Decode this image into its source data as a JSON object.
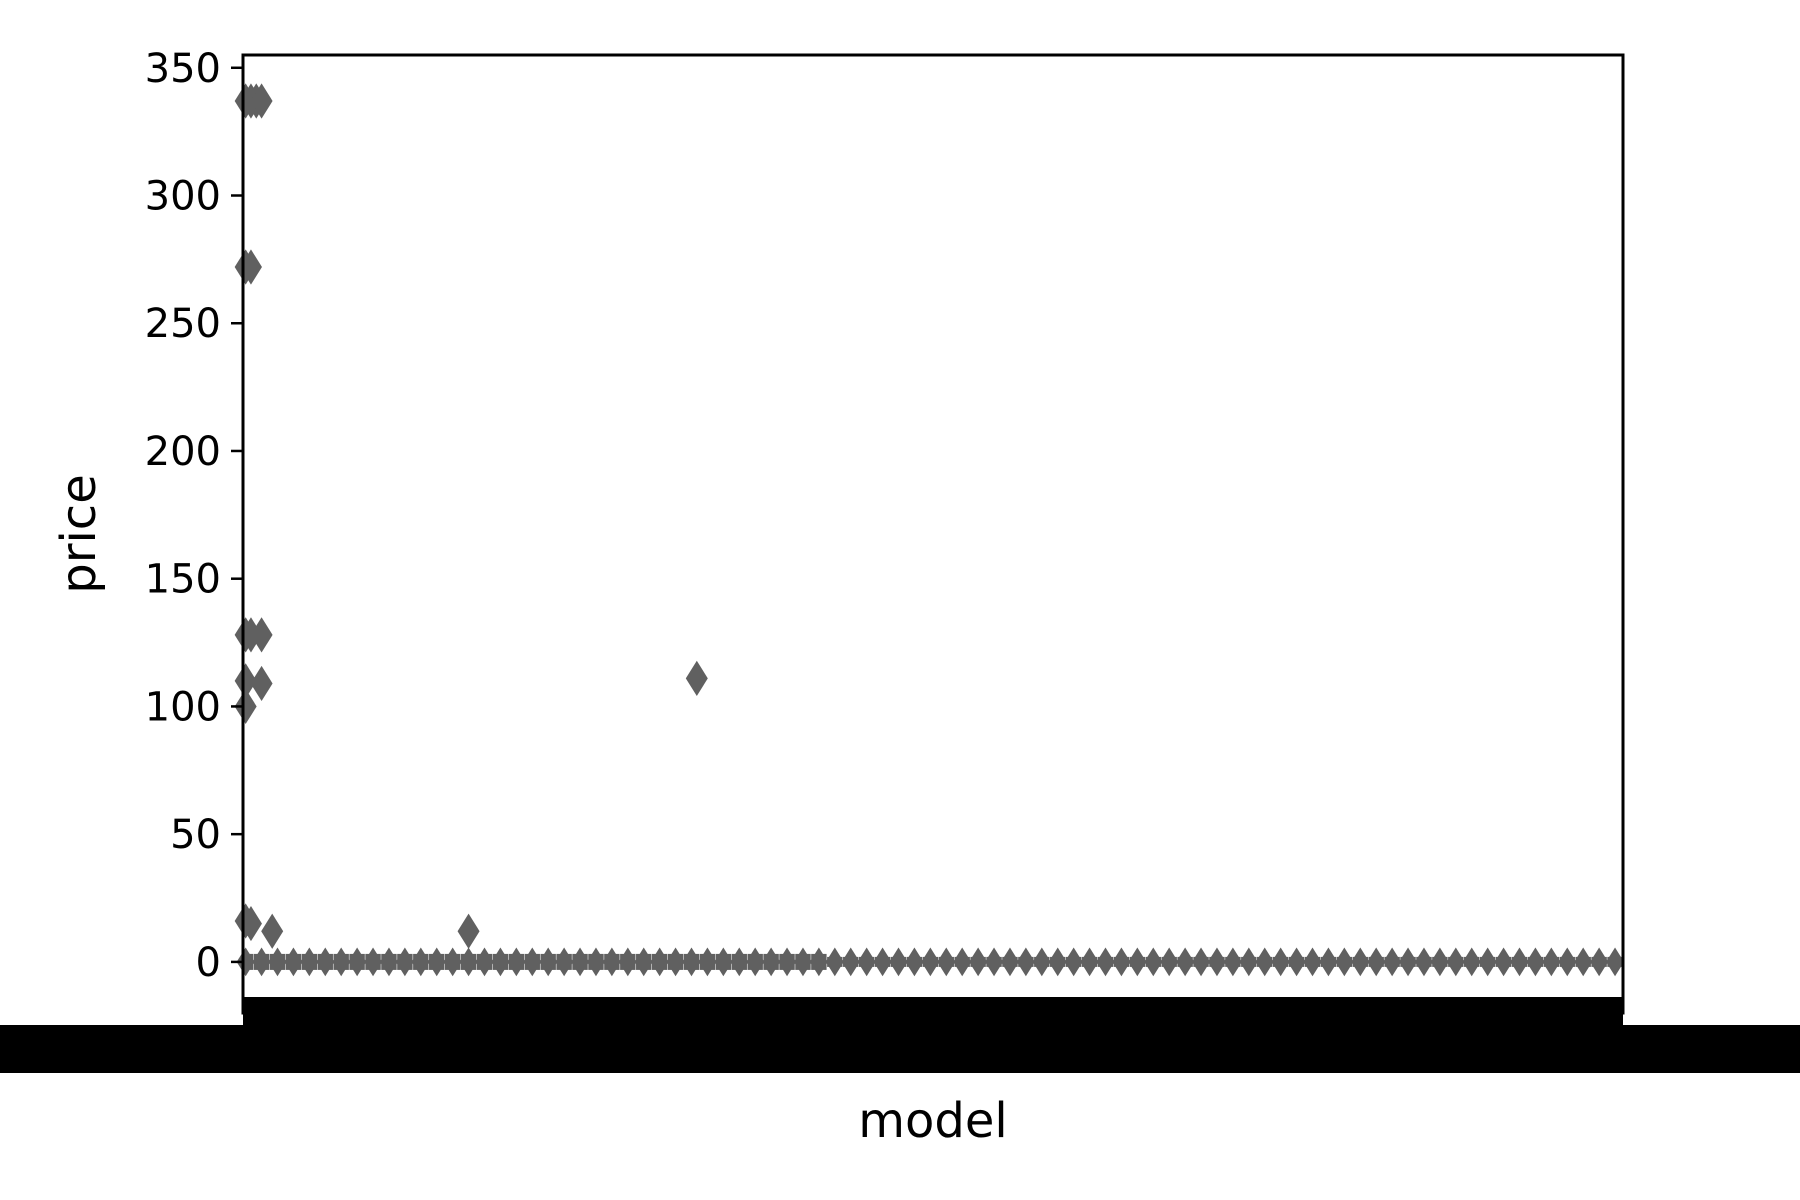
{
  "chart_data": {
    "type": "box",
    "title": "",
    "xlabel": "model",
    "ylabel": "price",
    "ylim": [
      -20,
      355
    ],
    "yticks": [
      0,
      50,
      100,
      150,
      200,
      250,
      300,
      350
    ],
    "grid": false,
    "legend": "none",
    "color": "#606060",
    "category_count_estimate": 260,
    "x_tick_labels": "illegible (overlapping category labels rendered as a solid band)",
    "outliers": [
      {
        "category_index": 0,
        "price": 337
      },
      {
        "category_index": 1,
        "price": 337
      },
      {
        "category_index": 2,
        "price": 337
      },
      {
        "category_index": 3,
        "price": 337
      },
      {
        "category_index": 0,
        "price": 272
      },
      {
        "category_index": 1,
        "price": 272
      },
      {
        "category_index": 0,
        "price": 128
      },
      {
        "category_index": 1,
        "price": 128
      },
      {
        "category_index": 3,
        "price": 128
      },
      {
        "category_index": 0,
        "price": 110
      },
      {
        "category_index": 3,
        "price": 109
      },
      {
        "category_index": 0,
        "price": 100
      },
      {
        "category_index": 0,
        "price": 16
      },
      {
        "category_index": 1,
        "price": 15
      },
      {
        "category_index": 5,
        "price": 12
      },
      {
        "category_index": 42,
        "price": 12
      },
      {
        "category_index": 85,
        "price": 111
      }
    ]
  },
  "colors": {
    "marker": "#606060",
    "axis": "#000000",
    "tick_band": "#000000"
  }
}
